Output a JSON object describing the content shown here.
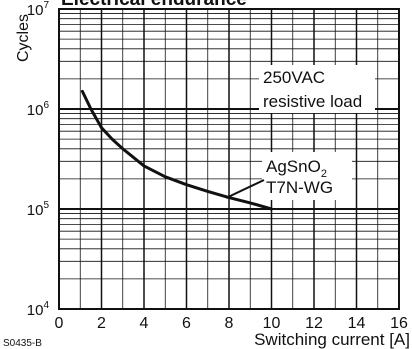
{
  "chart_data": {
    "type": "line",
    "title": "Electrical endurance",
    "xlabel": "Switching current [A]",
    "ylabel": "Cycles",
    "xlim": [
      0,
      16
    ],
    "ylim": [
      10000,
      10000000
    ],
    "yscale": "log",
    "xticks": [
      0,
      2,
      4,
      6,
      8,
      10,
      12,
      14,
      16
    ],
    "yticks": [
      {
        "value": 10000,
        "base": "10",
        "exp": "4"
      },
      {
        "value": 100000,
        "base": "10",
        "exp": "5"
      },
      {
        "value": 1000000,
        "base": "10",
        "exp": "6"
      },
      {
        "value": 10000000,
        "base": "10",
        "exp": "7"
      }
    ],
    "grid": true,
    "series": [
      {
        "x": [
          1.1,
          1.5,
          2,
          2.5,
          3,
          4,
          5,
          6,
          7,
          8,
          9,
          10
        ],
        "y": [
          1500000,
          1000000,
          650000,
          500000,
          400000,
          270000,
          210000,
          175000,
          150000,
          130000,
          115000,
          100000
        ]
      }
    ],
    "annotations": [
      {
        "lines": [
          "250VAC",
          "resistive load"
        ]
      },
      {
        "lines": [
          "AgSnO",
          "T7N-WG"
        ],
        "subscript": "2"
      }
    ],
    "color": "#111111"
  },
  "footer": {
    "code": "S0435-B"
  }
}
